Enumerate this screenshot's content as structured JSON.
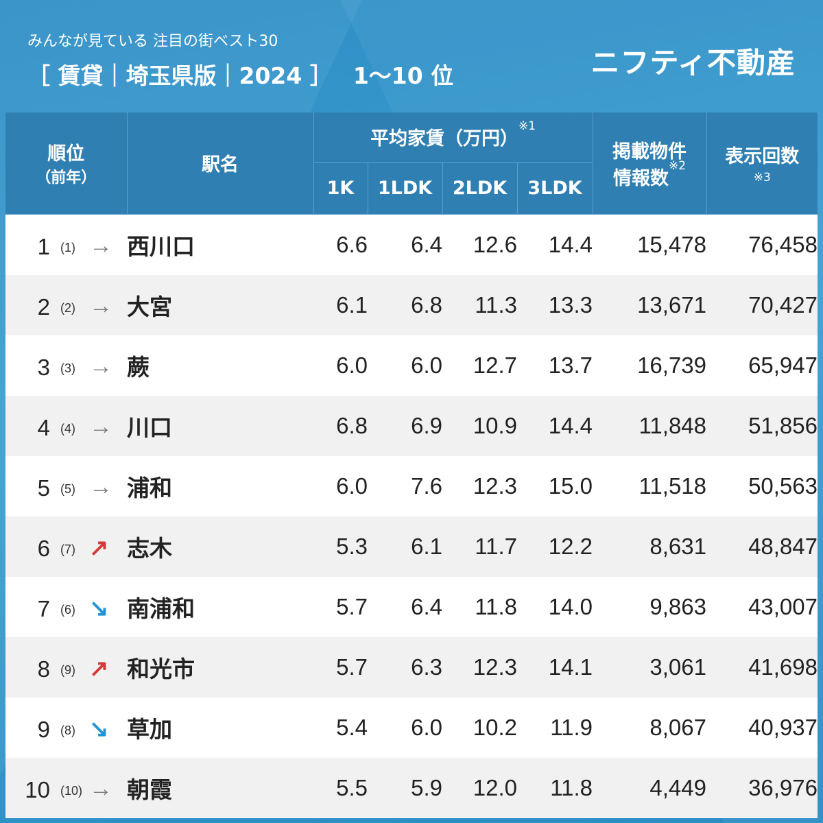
{
  "header": {
    "subtitle": "みんなが見ている 注目の街ベスト30",
    "title": "［ 賃貸｜埼玉県版｜2024 ］",
    "rank_range": "1〜10 位",
    "brand": "ニフティ不動産"
  },
  "table": {
    "head": {
      "rank": "順位",
      "rank_prev": "（前年）",
      "station": "駅名",
      "rent_group": "平均家賃（万円）",
      "rent_mark": "※1",
      "col_1k": "1K",
      "col_1ldk": "1LDK",
      "col_2ldk": "2LDK",
      "col_3ldk": "3LDK",
      "listings_line1": "掲載物件",
      "listings_line2": "情報数",
      "listings_mark": "※2",
      "views": "表示回数",
      "views_mark": "※3"
    },
    "rows": [
      {
        "rank": "1",
        "prev": "(1)",
        "trend": "same",
        "trend_symbol": "→",
        "station": "西川口",
        "k1": "6.6",
        "ldk1": "6.4",
        "ldk2": "12.6",
        "ldk3": "14.4",
        "listings": "15,478",
        "views": "76,458"
      },
      {
        "rank": "2",
        "prev": "(2)",
        "trend": "same",
        "trend_symbol": "→",
        "station": "大宮",
        "k1": "6.1",
        "ldk1": "6.8",
        "ldk2": "11.3",
        "ldk3": "13.3",
        "listings": "13,671",
        "views": "70,427"
      },
      {
        "rank": "3",
        "prev": "(3)",
        "trend": "same",
        "trend_symbol": "→",
        "station": "蕨",
        "k1": "6.0",
        "ldk1": "6.0",
        "ldk2": "12.7",
        "ldk3": "13.7",
        "listings": "16,739",
        "views": "65,947"
      },
      {
        "rank": "4",
        "prev": "(4)",
        "trend": "same",
        "trend_symbol": "→",
        "station": "川口",
        "k1": "6.8",
        "ldk1": "6.9",
        "ldk2": "10.9",
        "ldk3": "14.4",
        "listings": "11,848",
        "views": "51,856"
      },
      {
        "rank": "5",
        "prev": "(5)",
        "trend": "same",
        "trend_symbol": "→",
        "station": "浦和",
        "k1": "6.0",
        "ldk1": "7.6",
        "ldk2": "12.3",
        "ldk3": "15.0",
        "listings": "11,518",
        "views": "50,563"
      },
      {
        "rank": "6",
        "prev": "(7)",
        "trend": "up",
        "trend_symbol": "↗",
        "station": "志木",
        "k1": "5.3",
        "ldk1": "6.1",
        "ldk2": "11.7",
        "ldk3": "12.2",
        "listings": "8,631",
        "views": "48,847"
      },
      {
        "rank": "7",
        "prev": "(6)",
        "trend": "down",
        "trend_symbol": "↘",
        "station": "南浦和",
        "k1": "5.7",
        "ldk1": "6.4",
        "ldk2": "11.8",
        "ldk3": "14.0",
        "listings": "9,863",
        "views": "43,007"
      },
      {
        "rank": "8",
        "prev": "(9)",
        "trend": "up",
        "trend_symbol": "↗",
        "station": "和光市",
        "k1": "5.7",
        "ldk1": "6.3",
        "ldk2": "12.3",
        "ldk3": "14.1",
        "listings": "3,061",
        "views": "41,698"
      },
      {
        "rank": "9",
        "prev": "(8)",
        "trend": "down",
        "trend_symbol": "↘",
        "station": "草加",
        "k1": "5.4",
        "ldk1": "6.0",
        "ldk2": "10.2",
        "ldk3": "11.9",
        "listings": "8,067",
        "views": "40,937"
      },
      {
        "rank": "10",
        "prev": "(10)",
        "trend": "same",
        "trend_symbol": "→",
        "station": "朝霞",
        "k1": "5.5",
        "ldk1": "5.9",
        "ldk2": "12.0",
        "ldk3": "11.8",
        "listings": "4,449",
        "views": "36,976"
      }
    ]
  },
  "colors": {
    "background": "#2f8ec6",
    "header_cell": "#2f7fb3",
    "trend_same": "#7d7d7d",
    "trend_up": "#d23a3a",
    "trend_down": "#1f95d6"
  }
}
